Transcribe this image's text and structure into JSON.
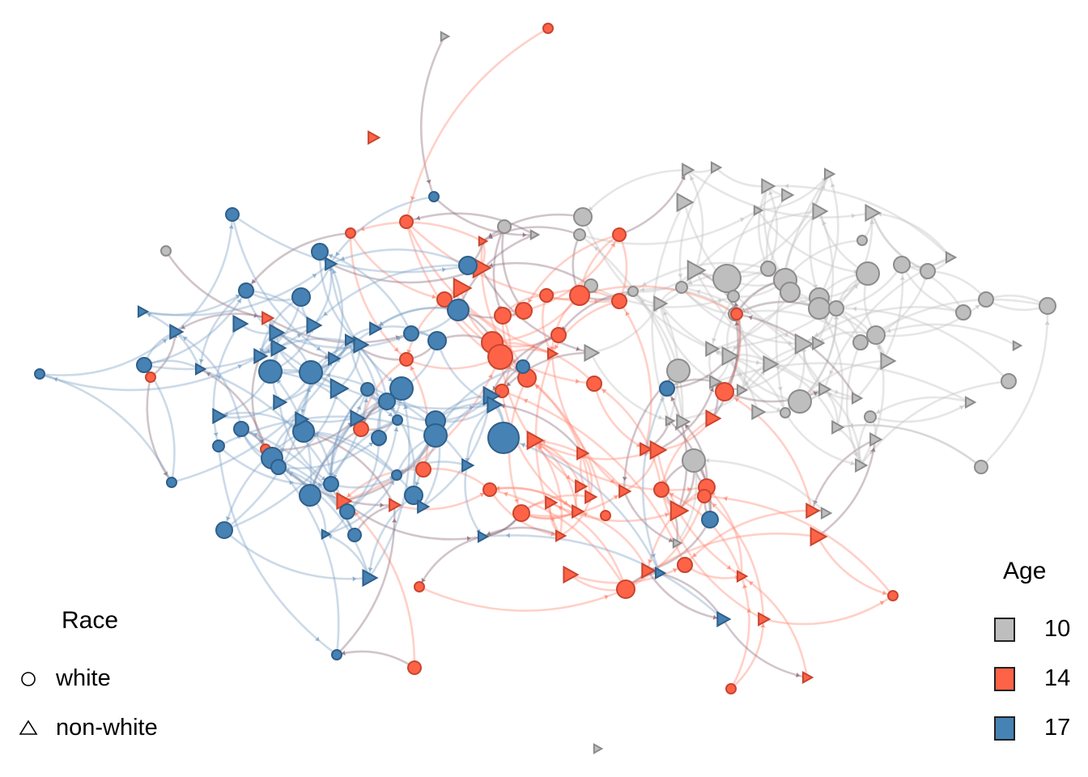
{
  "colors": {
    "age_10": "#BEBEBE",
    "age_14": "#FF6347",
    "age_17": "#4682B4",
    "edge_mixed": "#8B6B7A"
  },
  "legend": {
    "race": {
      "title": "Race",
      "items": [
        {
          "label": "white",
          "shape": "circle"
        },
        {
          "label": "non-white",
          "shape": "triangle"
        }
      ]
    },
    "age": {
      "title": "Age",
      "items": [
        {
          "label": "10",
          "color": "#BEBEBE"
        },
        {
          "label": "14",
          "color": "#FF6347"
        },
        {
          "label": "17",
          "color": "#4682B4"
        }
      ]
    }
  }
}
